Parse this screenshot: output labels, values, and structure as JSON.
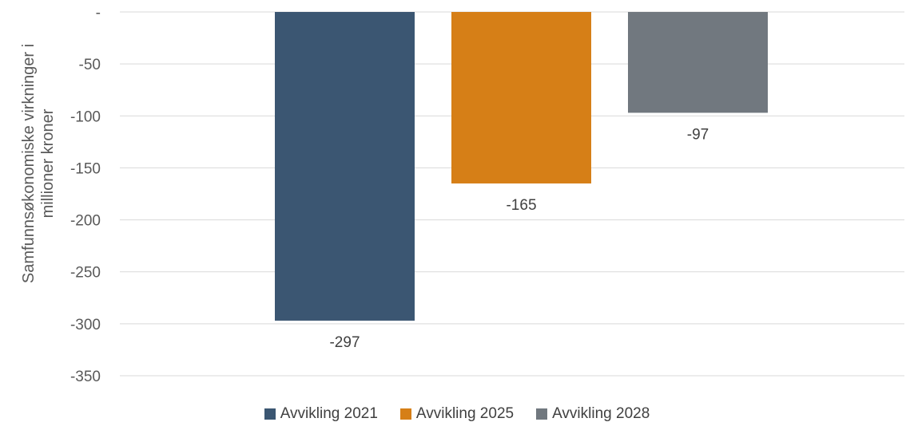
{
  "chart_data": {
    "type": "bar",
    "title": "",
    "xlabel": "",
    "ylabel": "Samfunnsøkonomiske virkninger i millioner kroner",
    "ylabel_lines": [
      "Samfunnsøkonomiske virkninger i",
      "millioner kroner"
    ],
    "ylim": [
      -350,
      0
    ],
    "yticks": [
      0,
      -50,
      -100,
      -150,
      -200,
      -250,
      -300,
      -350
    ],
    "ytick_labels": [
      "-",
      "-50",
      "-100",
      "-150",
      "-200",
      "-250",
      "-300",
      "-350"
    ],
    "grid": true,
    "legend_position": "bottom",
    "series": [
      {
        "name": "Avvikling 2021",
        "value": -297,
        "label": "-297",
        "color": "#3b5672"
      },
      {
        "name": "Avvikling 2025",
        "value": -165,
        "label": "-165",
        "color": "#d67f17"
      },
      {
        "name": "Avvikling 2028",
        "value": -97,
        "label": "-97",
        "color": "#71787f"
      }
    ]
  }
}
